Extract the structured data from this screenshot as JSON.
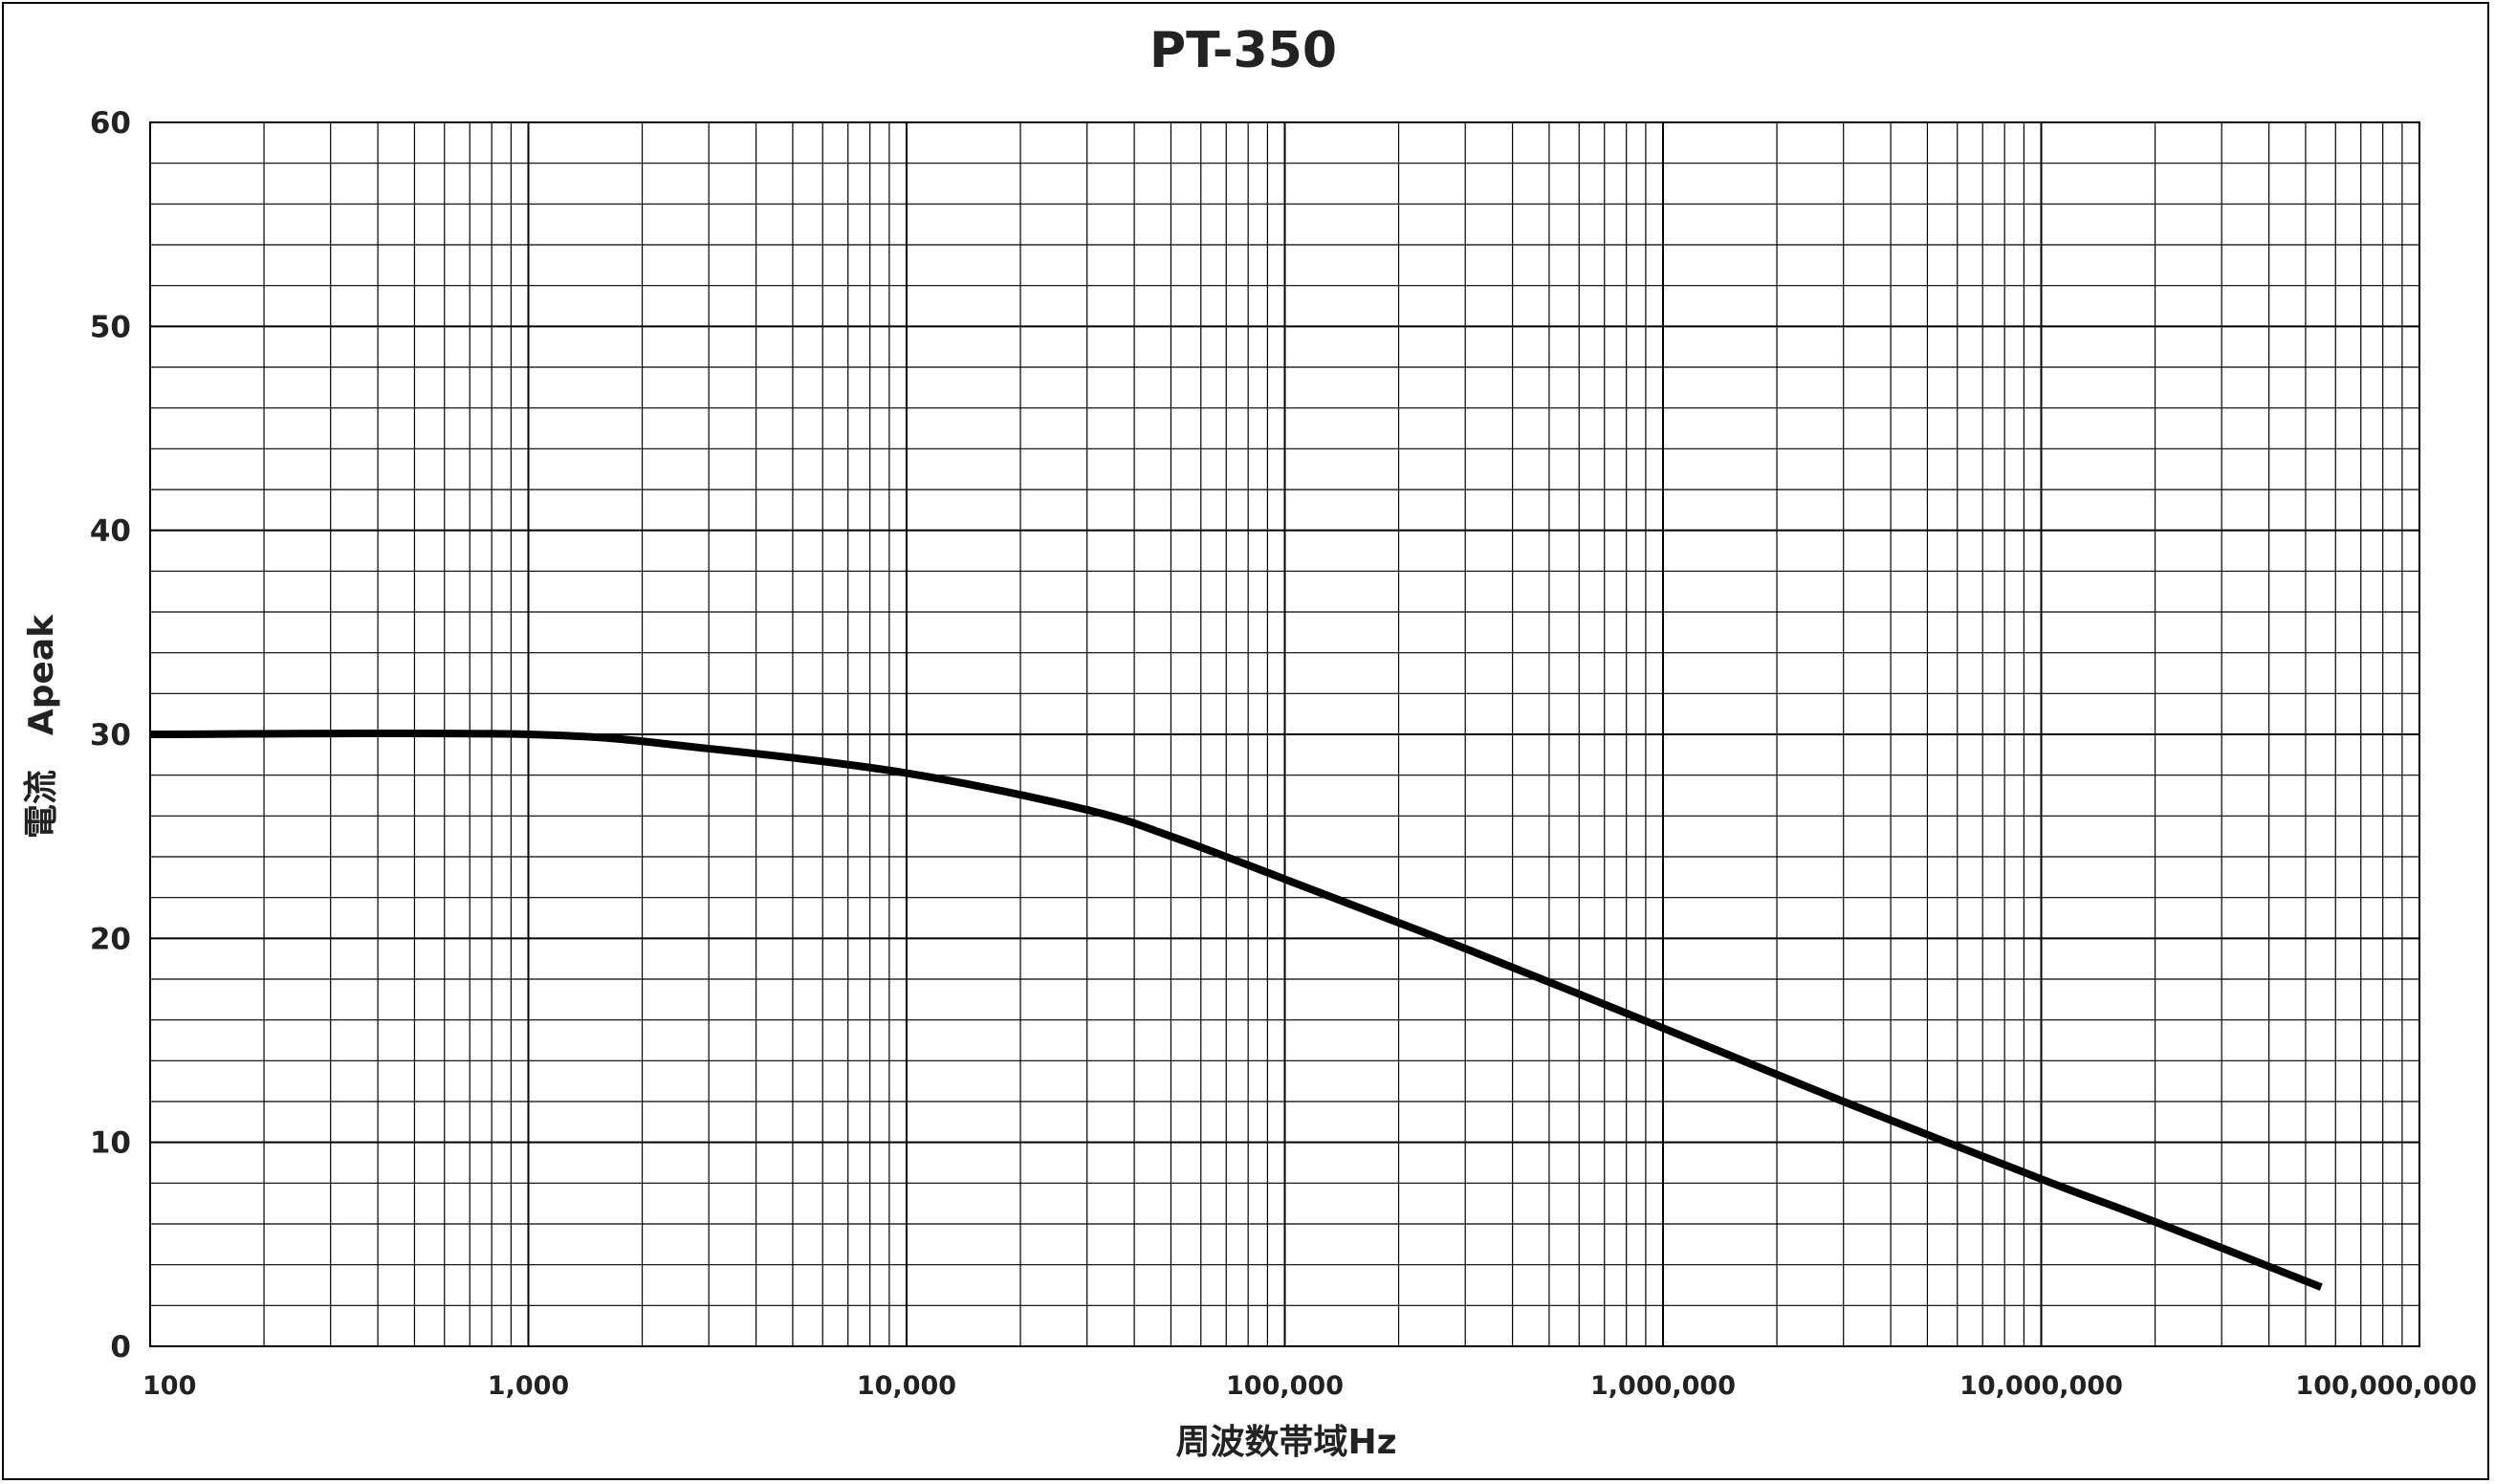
{
  "chart_data": {
    "type": "line",
    "title": "PT-350",
    "xlabel": "周波数帯域Hz",
    "ylabel": "電流　Apeak",
    "x_scale": "log",
    "xlim": [
      100,
      100000000
    ],
    "ylim": [
      0,
      60
    ],
    "grid": true,
    "x_tick_labels": [
      "100",
      "1,000",
      "10,000",
      "100,000",
      "1,000,000",
      "10,000,000",
      "100,000,000"
    ],
    "x_tick_values": [
      100,
      1000,
      10000,
      100000,
      1000000,
      10000000,
      100000000
    ],
    "y_tick_labels": [
      "0",
      "10",
      "20",
      "30",
      "40",
      "50",
      "60"
    ],
    "y_tick_values": [
      0,
      10,
      20,
      30,
      40,
      50,
      60
    ],
    "series": [
      {
        "color": "#000000",
        "x": [
          100,
          1000,
          3000,
          10000,
          30000,
          50000,
          100000,
          300000,
          1000000,
          3000000,
          10000000,
          20000000,
          55000000
        ],
        "y": [
          30,
          30,
          29.3,
          28.1,
          26.3,
          25.0,
          22.9,
          19.5,
          15.6,
          12.0,
          8.2,
          6.1,
          2.9
        ]
      }
    ]
  }
}
